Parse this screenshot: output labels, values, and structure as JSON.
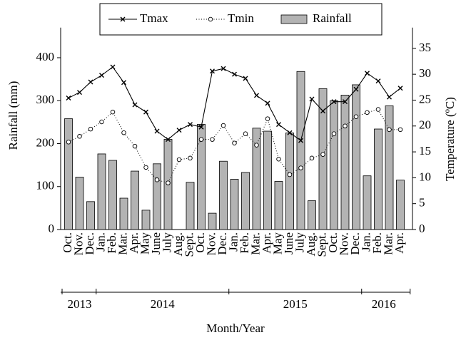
{
  "chart_data": {
    "type": "bar-line",
    "x_label": "Month/Year",
    "y_label": "Rainfall (mm)",
    "y2_label": "Temperature (ºC)",
    "categories": [
      "Oct.",
      "Nov.",
      "Dec.",
      "Jan.",
      "Feb.",
      "Mar.",
      "Apr.",
      "May",
      "June",
      "July",
      "Aug.",
      "Sept.",
      "Oct.",
      "Nov.",
      "Dec.",
      "Jan.",
      "Feb.",
      "Mar.",
      "Apr.",
      "May",
      "June",
      "July",
      "Aug.",
      "Sept.",
      "Oct.",
      "Nov.",
      "Dec.",
      "Jan.",
      "Feb.",
      "Mar.",
      "Apr."
    ],
    "years": [
      "2013",
      "2014",
      "2015",
      "2016"
    ],
    "series": [
      {
        "name": "Tmax",
        "type": "line",
        "axis": "y2",
        "color": "#000000",
        "marker": "x",
        "line_style": "solid",
        "values": [
          25.4,
          26.5,
          28.5,
          29.8,
          31.4,
          28.4,
          24.1,
          22.7,
          19.0,
          17.4,
          19.2,
          20.3,
          19.8,
          30.6,
          31.1,
          30.0,
          29.2,
          25.9,
          24.4,
          20.3,
          18.7,
          17.2,
          25.2,
          22.9,
          24.7,
          24.7,
          27.1,
          30.2,
          28.7,
          25.6,
          27.3
        ]
      },
      {
        "name": "Tmin",
        "type": "line",
        "axis": "y2",
        "color": "#000000",
        "marker": "circle",
        "line_style": "dotted",
        "values": [
          16.9,
          18.0,
          19.4,
          20.8,
          22.7,
          18.7,
          16.1,
          12.0,
          9.6,
          9.0,
          13.5,
          13.8,
          17.4,
          17.4,
          20.1,
          16.7,
          18.5,
          16.3,
          21.4,
          13.6,
          10.6,
          11.9,
          13.8,
          14.5,
          18.5,
          20.0,
          21.8,
          22.6,
          23.2,
          19.3,
          19.3
        ]
      },
      {
        "name": "Rainfall",
        "type": "bar",
        "axis": "y",
        "color": "#b3b3b3",
        "values": [
          258,
          122,
          65,
          176,
          161,
          73,
          136,
          45,
          153,
          210,
          0,
          110,
          245,
          38,
          159,
          117,
          133,
          236,
          229,
          112,
          225,
          368,
          67,
          328,
          300,
          313,
          337,
          125,
          234,
          288,
          115
        ]
      }
    ],
    "ylim": [
      0,
      470
    ],
    "yticks": [
      0,
      100,
      200,
      300,
      400
    ],
    "y2lim": [
      0,
      39
    ],
    "y2ticks": [
      0,
      5,
      10,
      15,
      20,
      25,
      30,
      35
    ],
    "legend": "top"
  }
}
